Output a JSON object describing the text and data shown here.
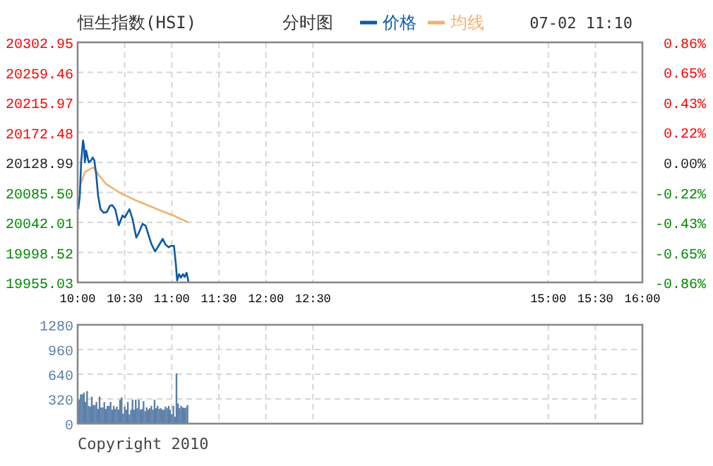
{
  "chart_data": [
    {
      "type": "line",
      "title": "恒生指数(HSI)",
      "subtitle": "分时图",
      "annotations": [
        "07-02 11:10"
      ],
      "legend": "top",
      "grid": true,
      "xlim": [
        10,
        16
      ],
      "xticks": [
        {
          "value": 10,
          "label": "10:00"
        },
        {
          "value": 10.5,
          "label": "10:30"
        },
        {
          "value": 11,
          "label": "11:00"
        },
        {
          "value": 11.5,
          "label": "11:30"
        },
        {
          "value": 12,
          "label": "12:00"
        },
        {
          "value": 12.5,
          "label": "12:30"
        },
        {
          "value": 15,
          "label": "15:00"
        },
        {
          "value": 15.5,
          "label": "15:30"
        },
        {
          "value": 16,
          "label": "16:00"
        }
      ],
      "ylim": [
        19955.03,
        20302.95
      ],
      "yticks": [
        {
          "value": 20302.95,
          "label": "20302.95"
        },
        {
          "value": 20259.46,
          "label": "20259.46"
        },
        {
          "value": 20215.97,
          "label": "20215.97"
        },
        {
          "value": 20172.48,
          "label": "20172.48"
        },
        {
          "value": 20128.99,
          "label": "20128.99"
        },
        {
          "value": 20085.5,
          "label": "20085.50"
        },
        {
          "value": 20042.01,
          "label": "20042.01"
        },
        {
          "value": 19998.52,
          "label": "19998.52"
        },
        {
          "value": 19955.03,
          "label": "19955.03"
        }
      ],
      "y2lim": [
        -0.86,
        0.86
      ],
      "y2ticks": [
        {
          "value": 0.86,
          "label": "0.86%"
        },
        {
          "value": 0.65,
          "label": "0.65%"
        },
        {
          "value": 0.43,
          "label": "0.43%"
        },
        {
          "value": 0.22,
          "label": "0.22%"
        },
        {
          "value": 0,
          "label": "0.00%"
        },
        {
          "value": -0.22,
          "label": "-0.22%"
        },
        {
          "value": -0.43,
          "label": "-0.43%"
        },
        {
          "value": -0.65,
          "label": "-0.65%"
        },
        {
          "value": -0.86,
          "label": "-0.86%"
        }
      ],
      "series": [
        {
          "name": "价格",
          "color": "#0d5aa7",
          "x": [
            10.007,
            10.023,
            10.037,
            10.057,
            10.067,
            10.077,
            10.09,
            10.117,
            10.143,
            10.16,
            10.177,
            10.197,
            10.217,
            10.243,
            10.277,
            10.31,
            10.343,
            10.367,
            10.4,
            10.437,
            10.477,
            10.5,
            10.55,
            10.583,
            10.623,
            10.65,
            10.69,
            10.723,
            10.75,
            10.783,
            10.823,
            10.85,
            10.903,
            10.933,
            10.967,
            10.993,
            11.023,
            11.043,
            11.057,
            11.077,
            11.097,
            11.117,
            11.137,
            11.157,
            11.177
          ],
          "values": [
            20061,
            20081,
            20129,
            20161,
            20153,
            20129,
            20146,
            20129,
            20132,
            20136,
            20132,
            20112,
            20081,
            20061,
            20056,
            20057,
            20066,
            20067,
            20061,
            20038,
            20052,
            20049,
            20061,
            20047,
            20020,
            20027,
            20040,
            20037,
            20025,
            20011,
            20000,
            20006,
            20018,
            20010,
            20006,
            20008,
            20008,
            19982,
            19958,
            19967,
            19962,
            19967,
            19963,
            19969,
            19956
          ]
        },
        {
          "name": "均线",
          "color": "#f4b16f",
          "x": [
            10.033,
            10.077,
            10.167,
            10.217,
            10.3,
            10.45,
            10.617,
            10.85,
            11.017,
            11.177
          ],
          "values": [
            20098,
            20115,
            20122,
            20112,
            20098,
            20085,
            20074,
            20061,
            20052,
            20042
          ]
        }
      ]
    },
    {
      "type": "bar",
      "annotations": [
        "Copyright 2010"
      ],
      "grid": true,
      "tick_labels": "y",
      "color": "#5b7fa8",
      "xlim": [
        10,
        16
      ],
      "xticks": [
        {
          "value": 10,
          "label": null
        },
        {
          "value": 10.5,
          "label": null
        },
        {
          "value": 11,
          "label": null
        },
        {
          "value": 11.5,
          "label": null
        },
        {
          "value": 12,
          "label": null
        },
        {
          "value": 12.5,
          "label": null
        },
        {
          "value": 15,
          "label": null
        },
        {
          "value": 15.5,
          "label": null
        },
        {
          "value": 16,
          "label": null
        }
      ],
      "ylim": [
        0,
        1280
      ],
      "yticks": [
        0,
        320,
        640,
        960,
        1280
      ],
      "x": [
        10.017,
        10.033,
        10.05,
        10.067,
        10.083,
        10.1,
        10.117,
        10.133,
        10.15,
        10.167,
        10.183,
        10.2,
        10.217,
        10.233,
        10.25,
        10.267,
        10.283,
        10.3,
        10.317,
        10.333,
        10.35,
        10.367,
        10.383,
        10.4,
        10.417,
        10.433,
        10.45,
        10.467,
        10.483,
        10.5,
        10.517,
        10.533,
        10.55,
        10.567,
        10.583,
        10.6,
        10.617,
        10.633,
        10.65,
        10.667,
        10.683,
        10.7,
        10.717,
        10.733,
        10.75,
        10.767,
        10.783,
        10.8,
        10.817,
        10.833,
        10.85,
        10.867,
        10.883,
        10.9,
        10.917,
        10.933,
        10.95,
        10.967,
        10.983,
        11,
        11.017,
        11.033,
        11.05,
        11.067,
        11.083,
        11.1,
        11.117,
        11.133,
        11.15,
        11.167
      ],
      "values": [
        310,
        380,
        380,
        400,
        280,
        420,
        230,
        220,
        350,
        240,
        240,
        280,
        190,
        350,
        210,
        210,
        280,
        190,
        230,
        230,
        280,
        180,
        230,
        190,
        220,
        180,
        310,
        340,
        130,
        220,
        180,
        280,
        120,
        180,
        310,
        180,
        310,
        200,
        310,
        180,
        190,
        290,
        160,
        210,
        180,
        200,
        230,
        180,
        310,
        200,
        230,
        190,
        200,
        180,
        180,
        220,
        200,
        230,
        180,
        120,
        230,
        90,
        650,
        260,
        200,
        230,
        210,
        200,
        210,
        240
      ]
    }
  ]
}
